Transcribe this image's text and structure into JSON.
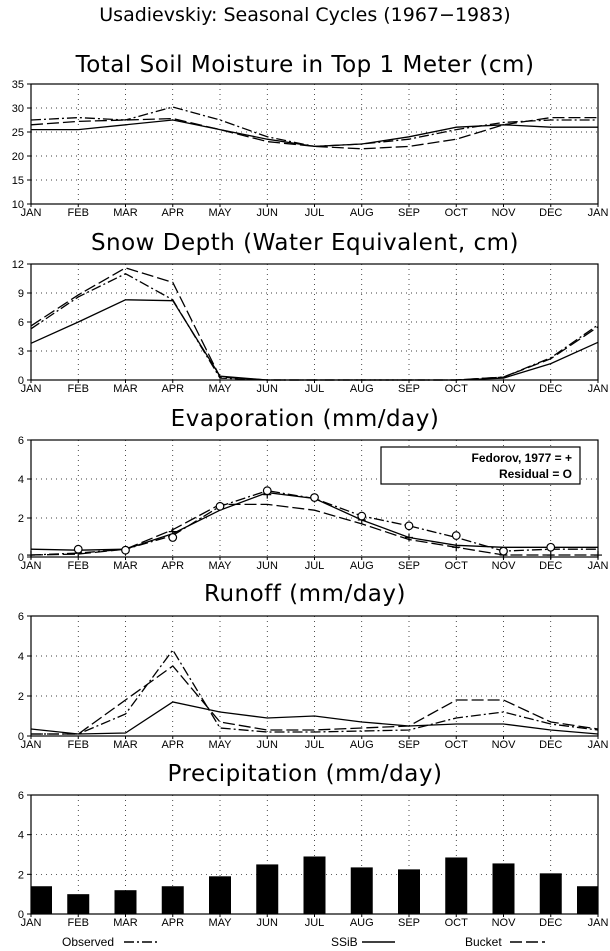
{
  "figure": {
    "title": "Usadievskiy: Seasonal Cycles (1967−1983)"
  },
  "legend": {
    "observed": "Observed",
    "ssib": "SSiB",
    "bucket": "Bucket",
    "box_line1": "Fedorov, 1977 = +",
    "box_line2": "Residual = O"
  },
  "colors": {
    "line": "#000000",
    "grid": "#000000",
    "bar": "#000000"
  },
  "chart_data": [
    {
      "type": "line",
      "title": "Total Soil Moisture in Top 1 Meter (cm)",
      "categories": [
        "JAN",
        "FEB",
        "MAR",
        "APR",
        "MAY",
        "JUN",
        "JUL",
        "AUG",
        "SEP",
        "OCT",
        "NOV",
        "DEC",
        "JAN"
      ],
      "ylim": [
        10,
        35
      ],
      "yticks": [
        10,
        15,
        20,
        25,
        30,
        35
      ],
      "grid": true,
      "series": [
        {
          "name": "Observed",
          "style": "dashdot",
          "values": [
            27.5,
            28,
            27.5,
            30.2,
            27.5,
            24,
            22,
            22.5,
            23.5,
            25.5,
            27,
            27.5,
            27.5
          ]
        },
        {
          "name": "SSiB",
          "style": "solid",
          "values": [
            25.5,
            25.5,
            26.5,
            27.5,
            25.5,
            23.5,
            22,
            22.5,
            24,
            26,
            26.5,
            26,
            26
          ]
        },
        {
          "name": "Bucket",
          "style": "longdash",
          "values": [
            26.5,
            27.2,
            27.5,
            27.8,
            25.5,
            23,
            22,
            21.5,
            22,
            23.5,
            26.5,
            28,
            28
          ]
        }
      ]
    },
    {
      "type": "line",
      "title": "Snow Depth (Water Equivalent, cm)",
      "categories": [
        "JAN",
        "FEB",
        "MAR",
        "APR",
        "MAY",
        "JUN",
        "JUL",
        "AUG",
        "SEP",
        "OCT",
        "NOV",
        "DEC",
        "JAN"
      ],
      "ylim": [
        0,
        12
      ],
      "yticks": [
        0,
        3,
        6,
        9,
        12
      ],
      "grid": true,
      "series": [
        {
          "name": "Observed",
          "style": "dashdot",
          "values": [
            5.3,
            8.6,
            11,
            8.3,
            0.2,
            0,
            0,
            0,
            0,
            0,
            0.3,
            2.3,
            5.7
          ]
        },
        {
          "name": "SSiB",
          "style": "solid",
          "values": [
            3.8,
            6,
            8.3,
            8.2,
            0.4,
            0,
            0,
            0,
            0,
            0,
            0.2,
            1.7,
            3.9
          ]
        },
        {
          "name": "Bucket",
          "style": "longdash",
          "values": [
            5.6,
            8.8,
            11.6,
            10.1,
            0.3,
            0,
            0,
            0,
            0,
            0,
            0.3,
            2.2,
            5.5
          ]
        }
      ]
    },
    {
      "type": "line",
      "title": "Evaporation (mm/day)",
      "categories": [
        "JAN",
        "FEB",
        "MAR",
        "APR",
        "MAY",
        "JUN",
        "JUL",
        "AUG",
        "SEP",
        "OCT",
        "NOV",
        "DEC",
        "JAN"
      ],
      "ylim": [
        0,
        6
      ],
      "yticks": [
        0,
        2,
        4,
        6
      ],
      "grid": true,
      "series": [
        {
          "name": "Observed",
          "style": "dashdot",
          "values": [
            0.1,
            0.2,
            0.4,
            1.1,
            2.6,
            3.4,
            3.0,
            2.1,
            1.6,
            1.0,
            0.3,
            0.4,
            0.4
          ]
        },
        {
          "name": "SSiB",
          "style": "solid",
          "values": [
            0.4,
            0.35,
            0.4,
            1.2,
            2.4,
            3.3,
            3.0,
            1.9,
            1.0,
            0.6,
            0.5,
            0.5,
            0.5
          ]
        },
        {
          "name": "Bucket",
          "style": "longdash",
          "values": [
            0.1,
            0.15,
            0.4,
            1.4,
            2.7,
            2.7,
            2.4,
            1.7,
            0.9,
            0.5,
            0.1,
            0.1,
            0.1
          ]
        },
        {
          "name": "Fedorov, 1977",
          "style": "plus",
          "values": [
            0.1,
            0.2,
            0.3,
            1.3,
            2.6,
            3.2,
            3.0,
            1.9,
            1.0,
            0.5,
            0.1,
            0.1,
            0.1
          ]
        },
        {
          "name": "Residual",
          "style": "circle",
          "values": [
            null,
            0.4,
            0.35,
            1.0,
            2.6,
            3.4,
            3.05,
            2.1,
            1.6,
            1.1,
            0.3,
            0.5,
            null
          ]
        }
      ]
    },
    {
      "type": "line",
      "title": "Runoff (mm/day)",
      "categories": [
        "JAN",
        "FEB",
        "MAR",
        "APR",
        "MAY",
        "JUN",
        "JUL",
        "AUG",
        "SEP",
        "OCT",
        "NOV",
        "DEC",
        "JAN"
      ],
      "ylim": [
        0,
        6
      ],
      "yticks": [
        0,
        2,
        4,
        6
      ],
      "grid": true,
      "series": [
        {
          "name": "Observed",
          "style": "dashdot",
          "values": [
            0.1,
            0.1,
            1.1,
            4.3,
            0.4,
            0.2,
            0.2,
            0.25,
            0.3,
            0.9,
            1.2,
            0.6,
            0.3
          ]
        },
        {
          "name": "SSiB",
          "style": "solid",
          "values": [
            0.35,
            0.1,
            0.15,
            1.7,
            1.2,
            0.9,
            1.0,
            0.7,
            0.5,
            0.6,
            0.6,
            0.3,
            0.1
          ]
        },
        {
          "name": "Bucket",
          "style": "longdash",
          "values": [
            0.1,
            0.1,
            1.8,
            3.5,
            0.7,
            0.3,
            0.3,
            0.4,
            0.5,
            1.8,
            1.8,
            0.7,
            0.35
          ]
        }
      ]
    },
    {
      "type": "bar",
      "title": "Precipitation (mm/day)",
      "categories": [
        "JAN",
        "FEB",
        "MAR",
        "APR",
        "MAY",
        "JUN",
        "JUL",
        "AUG",
        "SEP",
        "OCT",
        "NOV",
        "DEC",
        "JAN"
      ],
      "ylim": [
        0,
        6
      ],
      "yticks": [
        0,
        2,
        4,
        6
      ],
      "grid": true,
      "values": [
        1.4,
        1.0,
        1.2,
        1.4,
        1.9,
        2.5,
        2.9,
        2.35,
        2.25,
        2.85,
        2.55,
        2.05,
        1.4
      ]
    }
  ]
}
